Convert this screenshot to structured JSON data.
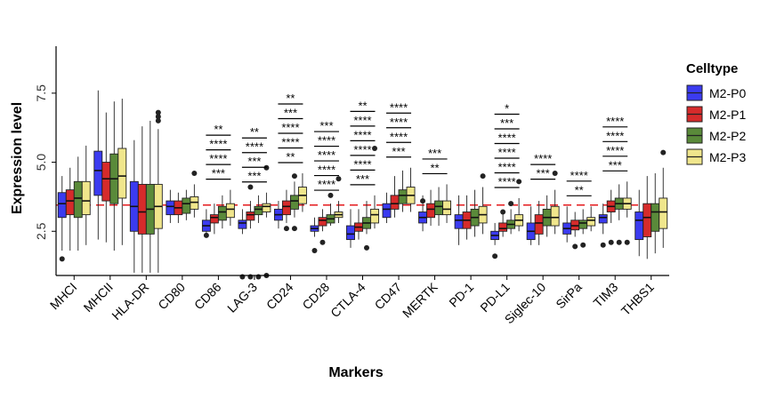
{
  "chart_data": {
    "type": "boxplot",
    "xlabel": "Markers",
    "ylabel": "Expression level",
    "ylim": [
      0.9,
      9.2
    ],
    "yticks": [
      2.5,
      5.0,
      7.5
    ],
    "ytick_labels": [
      "2.5",
      "5.0",
      "7.5"
    ],
    "reference_line": 3.45,
    "reference_line_color": "#e41a1c",
    "legend": {
      "title": "Celltype",
      "position": "right"
    },
    "categories": [
      "MHCI",
      "MHCII",
      "HLA-DR",
      "CD80",
      "CD86",
      "LAG-3",
      "CD24",
      "CD28",
      "CTLA-4",
      "CD47",
      "MERTK",
      "PD-1",
      "PD-L1",
      "Siglec-10",
      "SirPa",
      "TIM3",
      "THBS1"
    ],
    "series": [
      {
        "name": "M2-P0",
        "color": "#3b3bf0",
        "boxes": [
          [
            1.8,
            3.0,
            3.5,
            3.9,
            4.5
          ],
          [
            2.2,
            3.8,
            4.7,
            5.4,
            7.6
          ],
          [
            1.0,
            2.5,
            3.4,
            4.3,
            5.8
          ],
          [
            2.8,
            3.1,
            3.4,
            3.6,
            4.0
          ],
          [
            2.3,
            2.5,
            2.7,
            2.9,
            3.3
          ],
          [
            2.4,
            2.6,
            2.8,
            2.9,
            3.3
          ],
          [
            2.6,
            2.9,
            3.1,
            3.3,
            3.6
          ],
          [
            2.3,
            2.5,
            2.6,
            2.7,
            3.0
          ],
          [
            1.9,
            2.2,
            2.4,
            2.7,
            3.3
          ],
          [
            2.8,
            3.0,
            3.3,
            3.5,
            3.9
          ],
          [
            2.5,
            2.8,
            3.0,
            3.2,
            3.8
          ],
          [
            2.0,
            2.6,
            2.9,
            3.1,
            3.8
          ],
          [
            2.0,
            2.2,
            2.35,
            2.5,
            2.8
          ],
          [
            2.0,
            2.2,
            2.5,
            2.8,
            3.4
          ],
          [
            2.1,
            2.4,
            2.6,
            2.8,
            3.4
          ],
          [
            2.4,
            2.8,
            3.0,
            3.1,
            3.5
          ],
          [
            1.6,
            2.2,
            2.9,
            3.2,
            4.0
          ]
        ]
      },
      {
        "name": "M2-P1",
        "color": "#d62b2b",
        "boxes": [
          [
            1.8,
            3.1,
            3.6,
            4.0,
            4.8
          ],
          [
            2.1,
            3.6,
            4.4,
            5.0,
            6.8
          ],
          [
            1.0,
            2.4,
            3.2,
            4.2,
            6.3
          ],
          [
            2.8,
            3.1,
            3.35,
            3.6,
            3.9
          ],
          [
            2.4,
            2.8,
            3.0,
            3.1,
            3.5
          ],
          [
            2.6,
            2.9,
            3.1,
            3.2,
            3.6
          ],
          [
            2.8,
            3.1,
            3.4,
            3.6,
            4.0
          ],
          [
            2.5,
            2.7,
            2.9,
            3.0,
            3.3
          ],
          [
            2.2,
            2.5,
            2.65,
            2.8,
            3.3
          ],
          [
            3.0,
            3.3,
            3.5,
            3.8,
            4.5
          ],
          [
            2.7,
            3.0,
            3.3,
            3.5,
            4.0
          ],
          [
            2.2,
            2.6,
            2.9,
            3.2,
            3.8
          ],
          [
            2.3,
            2.5,
            2.6,
            2.8,
            3.2
          ],
          [
            2.0,
            2.4,
            2.8,
            3.1,
            3.6
          ],
          [
            2.3,
            2.55,
            2.7,
            2.9,
            3.2
          ],
          [
            2.8,
            3.2,
            3.4,
            3.6,
            4.0
          ],
          [
            1.5,
            2.3,
            3.0,
            3.5,
            4.5
          ]
        ]
      },
      {
        "name": "M2-P2",
        "color": "#5a8a3a",
        "boxes": [
          [
            1.8,
            3.0,
            3.7,
            4.3,
            5.2
          ],
          [
            1.8,
            3.5,
            4.4,
            5.3,
            7.2
          ],
          [
            1.0,
            2.4,
            3.3,
            4.2,
            6.5
          ],
          [
            2.9,
            3.15,
            3.5,
            3.7,
            4.0
          ],
          [
            2.6,
            2.9,
            3.2,
            3.4,
            3.8
          ],
          [
            2.8,
            3.1,
            3.3,
            3.4,
            3.8
          ],
          [
            3.0,
            3.3,
            3.6,
            3.8,
            4.3
          ],
          [
            2.7,
            2.8,
            2.95,
            3.1,
            3.5
          ],
          [
            2.4,
            2.6,
            2.8,
            3.0,
            3.6
          ],
          [
            3.2,
            3.5,
            3.8,
            4.0,
            4.7
          ],
          [
            2.7,
            3.1,
            3.4,
            3.6,
            4.1
          ],
          [
            2.3,
            2.7,
            3.0,
            3.3,
            4.0
          ],
          [
            2.4,
            2.6,
            2.75,
            2.9,
            3.3
          ],
          [
            2.3,
            2.7,
            3.0,
            3.3,
            3.8
          ],
          [
            2.4,
            2.6,
            2.8,
            2.9,
            3.3
          ],
          [
            2.9,
            3.3,
            3.5,
            3.7,
            4.2
          ],
          [
            1.7,
            2.5,
            3.2,
            3.5,
            4.6
          ]
        ]
      },
      {
        "name": "M2-P3",
        "color": "#f0e68c",
        "boxes": [
          [
            2.0,
            3.1,
            3.6,
            4.3,
            5.6
          ],
          [
            2.0,
            3.7,
            4.5,
            5.5,
            7.3
          ],
          [
            1.0,
            2.6,
            3.4,
            4.2,
            6.2
          ],
          [
            3.0,
            3.3,
            3.55,
            3.75,
            4.2
          ],
          [
            2.7,
            3.0,
            3.3,
            3.5,
            4.0
          ],
          [
            3.0,
            3.2,
            3.4,
            3.5,
            3.9
          ],
          [
            3.2,
            3.5,
            3.8,
            4.1,
            4.6
          ],
          [
            2.8,
            3.0,
            3.1,
            3.2,
            3.6
          ],
          [
            2.6,
            2.8,
            3.1,
            3.3,
            3.8
          ],
          [
            3.2,
            3.5,
            3.8,
            4.1,
            4.8
          ],
          [
            2.8,
            3.1,
            3.3,
            3.6,
            4.2
          ],
          [
            2.4,
            2.8,
            3.1,
            3.4,
            4.1
          ],
          [
            2.5,
            2.7,
            2.9,
            3.1,
            3.7
          ],
          [
            2.4,
            2.7,
            3.0,
            3.4,
            4.0
          ],
          [
            2.5,
            2.7,
            2.9,
            3.0,
            3.4
          ],
          [
            3.0,
            3.3,
            3.5,
            3.7,
            4.3
          ],
          [
            1.9,
            2.6,
            3.2,
            3.7,
            4.8
          ]
        ]
      }
    ],
    "outliers": [
      {
        "category": "MHCI",
        "series": "M2-P0",
        "y": 1.5
      },
      {
        "category": "HLA-DR",
        "series": "M2-P3",
        "y": 6.8
      },
      {
        "category": "HLA-DR",
        "series": "M2-P3",
        "y": 6.65
      },
      {
        "category": "HLA-DR",
        "series": "M2-P3",
        "y": 6.5
      },
      {
        "category": "CD80",
        "series": "M2-P3",
        "y": 4.6
      },
      {
        "category": "CD86",
        "series": "M2-P0",
        "y": 2.35
      },
      {
        "category": "LAG-3",
        "series": "M2-P0",
        "y": 0.85
      },
      {
        "category": "LAG-3",
        "series": "M2-P1",
        "y": 0.85
      },
      {
        "category": "LAG-3",
        "series": "M2-P2",
        "y": 0.85
      },
      {
        "category": "LAG-3",
        "series": "M2-P3",
        "y": 0.9
      },
      {
        "category": "LAG-3",
        "series": "M2-P1",
        "y": 4.1
      },
      {
        "category": "LAG-3",
        "series": "M2-P3",
        "y": 4.8
      },
      {
        "category": "CD24",
        "series": "M2-P1",
        "y": 2.6
      },
      {
        "category": "CD24",
        "series": "M2-P2",
        "y": 2.6
      },
      {
        "category": "CD24",
        "series": "M2-P2",
        "y": 4.5
      },
      {
        "category": "CD28",
        "series": "M2-P0",
        "y": 1.8
      },
      {
        "category": "CD28",
        "series": "M2-P1",
        "y": 2.1
      },
      {
        "category": "CD28",
        "series": "M2-P2",
        "y": 3.8
      },
      {
        "category": "CD28",
        "series": "M2-P3",
        "y": 4.4
      },
      {
        "category": "CTLA-4",
        "series": "M2-P2",
        "y": 1.9
      },
      {
        "category": "CTLA-4",
        "series": "M2-P3",
        "y": 5.5
      },
      {
        "category": "MERTK",
        "series": "M2-P0",
        "y": 3.6
      },
      {
        "category": "PD-1",
        "series": "M2-P3",
        "y": 4.5
      },
      {
        "category": "PD-L1",
        "series": "M2-P0",
        "y": 1.6
      },
      {
        "category": "PD-L1",
        "series": "M2-P1",
        "y": 3.2
      },
      {
        "category": "PD-L1",
        "series": "M2-P2",
        "y": 3.5
      },
      {
        "category": "PD-L1",
        "series": "M2-P3",
        "y": 4.3
      },
      {
        "category": "Siglec-10",
        "series": "M2-P3",
        "y": 4.6
      },
      {
        "category": "SirPa",
        "series": "M2-P1",
        "y": 1.95
      },
      {
        "category": "SirPa",
        "series": "M2-P2",
        "y": 2.0
      },
      {
        "category": "TIM3",
        "series": "M2-P0",
        "y": 2.0
      },
      {
        "category": "TIM3",
        "series": "M2-P1",
        "y": 2.1
      },
      {
        "category": "TIM3",
        "series": "M2-P2",
        "y": 2.1
      },
      {
        "category": "TIM3",
        "series": "M2-P3",
        "y": 2.1
      },
      {
        "category": "THBS1",
        "series": "M2-P3",
        "y": 5.35
      }
    ],
    "significance": [
      {
        "category": "CD86",
        "labels": [
          "**",
          "****",
          "****",
          "***"
        ]
      },
      {
        "category": "LAG-3",
        "labels": [
          "**",
          "****",
          "***",
          "***"
        ]
      },
      {
        "category": "CD24",
        "labels": [
          "**",
          "***",
          "****",
          "****",
          "**"
        ]
      },
      {
        "category": "CD28",
        "labels": [
          "***",
          "****",
          "****",
          "****",
          "****"
        ]
      },
      {
        "category": "CTLA-4",
        "labels": [
          "**",
          "****",
          "****",
          "****",
          "****",
          "***"
        ]
      },
      {
        "category": "CD47",
        "labels": [
          "****",
          "****",
          "****",
          "***"
        ]
      },
      {
        "category": "MERTK",
        "labels": [
          "***",
          "**"
        ]
      },
      {
        "category": "PD-L1",
        "labels": [
          "*",
          "***",
          "****",
          "****",
          "****",
          "****"
        ]
      },
      {
        "category": "Siglec-10",
        "labels": [
          "****",
          "***"
        ]
      },
      {
        "category": "SirPa",
        "labels": [
          "****",
          "**"
        ]
      },
      {
        "category": "TIM3",
        "labels": [
          "****",
          "****",
          "****",
          "***"
        ]
      }
    ]
  }
}
